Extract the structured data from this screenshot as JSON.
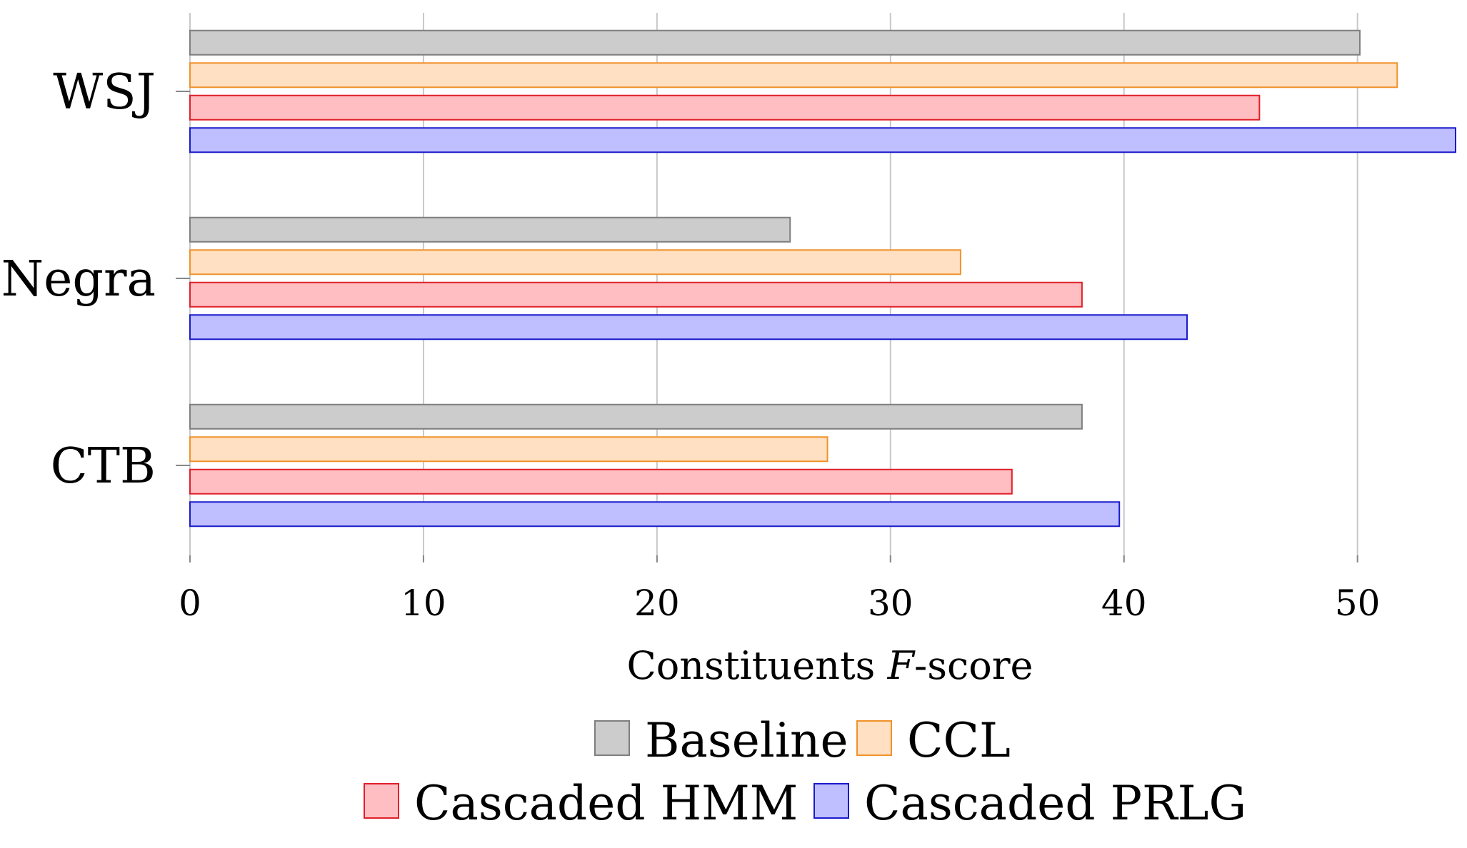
{
  "chart_data": {
    "type": "bar",
    "orientation": "horizontal",
    "categories": [
      "WSJ",
      "Negra",
      "CTB"
    ],
    "series": [
      {
        "name": "Baseline",
        "values": [
          50.1,
          25.7,
          38.2
        ],
        "fill": "#cccccc",
        "stroke": "#7f7f7f"
      },
      {
        "name": "CCL",
        "values": [
          51.7,
          33.0,
          27.3
        ],
        "fill": "#ffe0c2",
        "stroke": "#f0922b"
      },
      {
        "name": "Cascaded HMM",
        "values": [
          45.8,
          38.2,
          35.2
        ],
        "fill": "#ffbfc2",
        "stroke": "#e0202a"
      },
      {
        "name": "Cascaded PRLG",
        "values": [
          54.2,
          42.7,
          39.8
        ],
        "fill": "#bfbfff",
        "stroke": "#1a1acc"
      }
    ],
    "xlabel_text": "Constituents ",
    "xlabel_italic": "F",
    "xlabel_suffix": "-score",
    "ylabel": "",
    "title": "",
    "xlim": [
      0,
      54.2
    ],
    "xticks": [
      0,
      10,
      20,
      30,
      40,
      50
    ],
    "xtick_labels": [
      "0",
      "10",
      "20",
      "30",
      "40",
      "50"
    ],
    "grid": "vertical",
    "legend_position": "bottom"
  }
}
